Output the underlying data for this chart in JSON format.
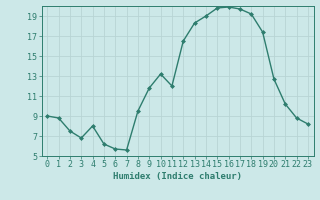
{
  "x": [
    0,
    1,
    2,
    3,
    4,
    5,
    6,
    7,
    8,
    9,
    10,
    11,
    12,
    13,
    14,
    15,
    16,
    17,
    18,
    19,
    20,
    21,
    22,
    23
  ],
  "y": [
    9.0,
    8.8,
    7.5,
    6.8,
    8.0,
    6.2,
    5.7,
    5.6,
    9.5,
    11.8,
    13.2,
    12.0,
    16.5,
    18.3,
    19.0,
    19.8,
    19.9,
    19.7,
    19.2,
    17.4,
    12.7,
    10.2,
    8.8,
    8.2
  ],
  "line_color": "#2e7d6e",
  "marker": "D",
  "marker_size": 2.0,
  "bg_color": "#cce8e8",
  "grid_color": "#b8d4d4",
  "xlabel": "Humidex (Indice chaleur)",
  "ylim": [
    5,
    20
  ],
  "xlim": [
    -0.5,
    23.5
  ],
  "yticks": [
    5,
    7,
    9,
    11,
    13,
    15,
    17,
    19
  ],
  "xticks": [
    0,
    1,
    2,
    3,
    4,
    5,
    6,
    7,
    8,
    9,
    10,
    11,
    12,
    13,
    14,
    15,
    16,
    17,
    18,
    19,
    20,
    21,
    22,
    23
  ],
  "line_color_spine": "#2e7d6e",
  "tick_color": "#2e7d6e",
  "label_fontsize": 6.5,
  "tick_fontsize": 6.0
}
